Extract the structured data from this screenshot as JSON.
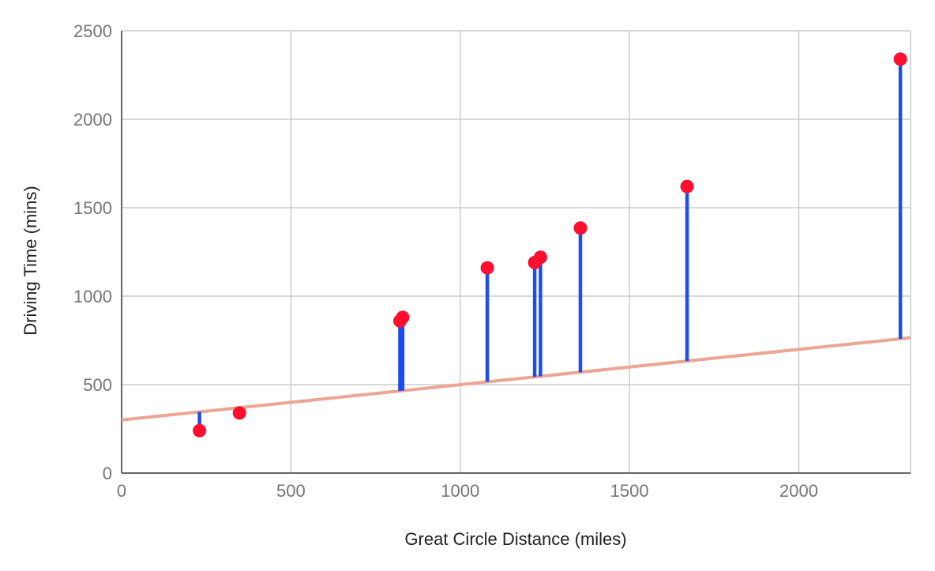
{
  "chart_data": {
    "type": "scatter",
    "xlabel": "Great Circle Distance (miles)",
    "ylabel": "Driving Time (mins)",
    "xlim": [
      0,
      2330
    ],
    "ylim": [
      0,
      2500
    ],
    "x_ticks": [
      0,
      500,
      1000,
      1500,
      2000
    ],
    "y_ticks": [
      0,
      500,
      1000,
      1500,
      2000,
      2500
    ],
    "grid": true,
    "legend": "none",
    "colors": {
      "points": "#ff0e2e",
      "residuals": "#1f4cf2",
      "trendline": "#eda593",
      "grid": "#cccccc",
      "axis": "#333333"
    },
    "trendline": {
      "x": [
        0,
        2330
      ],
      "y": [
        300,
        765
      ]
    },
    "points": [
      {
        "x": 230,
        "y": 240,
        "fit": 346
      },
      {
        "x": 348,
        "y": 340,
        "fit": 369
      },
      {
        "x": 822,
        "y": 860,
        "fit": 464
      },
      {
        "x": 830,
        "y": 880,
        "fit": 466
      },
      {
        "x": 1080,
        "y": 1160,
        "fit": 516
      },
      {
        "x": 1220,
        "y": 1190,
        "fit": 543
      },
      {
        "x": 1237,
        "y": 1220,
        "fit": 547
      },
      {
        "x": 1355,
        "y": 1385,
        "fit": 570
      },
      {
        "x": 1670,
        "y": 1620,
        "fit": 633
      },
      {
        "x": 2300,
        "y": 2340,
        "fit": 759
      }
    ]
  }
}
